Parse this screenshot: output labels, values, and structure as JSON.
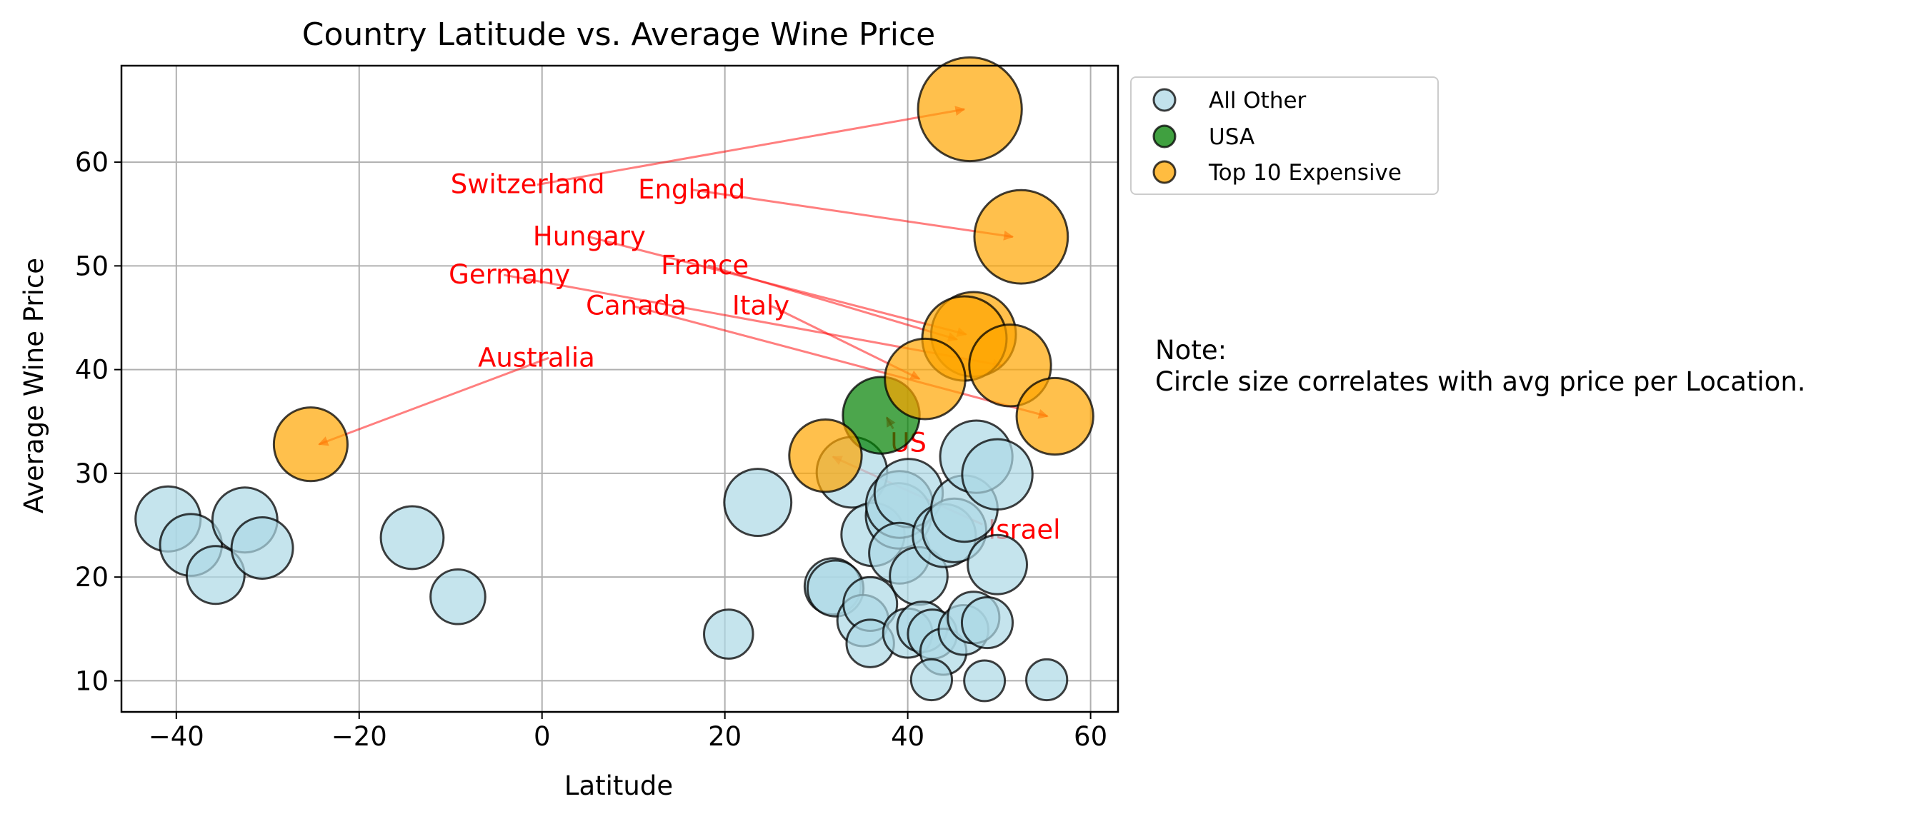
{
  "chart_data": {
    "type": "scatter",
    "title": "Country Latitude vs. Average Wine Price",
    "xlabel": "Latitude",
    "ylabel": "Average Wine Price",
    "xlim": [
      -46,
      63
    ],
    "ylim": [
      7,
      69.3
    ],
    "xticks": [
      -40,
      -20,
      0,
      20,
      40,
      60
    ],
    "yticks": [
      10,
      20,
      30,
      40,
      50,
      60
    ],
    "xtick_labels": [
      "−40",
      "−20",
      "0",
      "20",
      "40",
      "60"
    ],
    "ytick_labels": [
      "10",
      "20",
      "30",
      "40",
      "50",
      "60"
    ],
    "grid": true,
    "legend": {
      "placement": "outside upper-right",
      "entries": [
        {
          "label": "All Other",
          "color": "#add8e6"
        },
        {
          "label": "USA",
          "color": "#008000"
        },
        {
          "label": "Top 10 Expensive",
          "color": "#ffa500"
        }
      ]
    },
    "note": {
      "line1": "Note:",
      "line2": "Circle size correlates with avg price per Location."
    },
    "series": [
      {
        "name": "All Other",
        "color": "#add8e6",
        "points": [
          {
            "x": -40.9,
            "y": 25.6
          },
          {
            "x": -38.4,
            "y": 23.1
          },
          {
            "x": -35.7,
            "y": 20.2
          },
          {
            "x": -32.5,
            "y": 25.5
          },
          {
            "x": -30.6,
            "y": 22.8
          },
          {
            "x": -14.2,
            "y": 23.8
          },
          {
            "x": -9.2,
            "y": 18.1
          },
          {
            "x": 20.4,
            "y": 14.5
          },
          {
            "x": 23.6,
            "y": 27.2
          },
          {
            "x": 33.9,
            "y": 30.1
          },
          {
            "x": 31.8,
            "y": 19.1
          },
          {
            "x": 32.1,
            "y": 18.9
          },
          {
            "x": 35.1,
            "y": 15.8
          },
          {
            "x": 35.9,
            "y": 17.4
          },
          {
            "x": 35.9,
            "y": 13.6
          },
          {
            "x": 36.2,
            "y": 24.1
          },
          {
            "x": 39.0,
            "y": 25.9
          },
          {
            "x": 39.1,
            "y": 27.0
          },
          {
            "x": 40.1,
            "y": 28.1
          },
          {
            "x": 39.1,
            "y": 22.3
          },
          {
            "x": 41.2,
            "y": 20.1
          },
          {
            "x": 40.0,
            "y": 14.6
          },
          {
            "x": 41.6,
            "y": 15.2
          },
          {
            "x": 42.7,
            "y": 14.5
          },
          {
            "x": 43.9,
            "y": 12.8
          },
          {
            "x": 42.6,
            "y": 10.1
          },
          {
            "x": 44.0,
            "y": 24.0
          },
          {
            "x": 45.1,
            "y": 24.5
          },
          {
            "x": 46.2,
            "y": 26.6
          },
          {
            "x": 47.5,
            "y": 31.6
          },
          {
            "x": 49.8,
            "y": 29.9
          },
          {
            "x": 49.8,
            "y": 21.2
          },
          {
            "x": 46.1,
            "y": 14.9
          },
          {
            "x": 47.2,
            "y": 16.1
          },
          {
            "x": 48.7,
            "y": 15.6
          },
          {
            "x": 48.4,
            "y": 10.0
          },
          {
            "x": 55.2,
            "y": 10.1
          }
        ]
      },
      {
        "name": "USA",
        "color": "#008000",
        "points": [
          {
            "x": 37.1,
            "y": 35.6
          }
        ]
      },
      {
        "name": "Top 10 Expensive",
        "color": "#ffa500",
        "points": [
          {
            "x": 46.8,
            "y": 65.1,
            "label": "Switzerland"
          },
          {
            "x": 52.4,
            "y": 52.8,
            "label": "England"
          },
          {
            "x": 47.2,
            "y": 43.4,
            "label": "Hungary"
          },
          {
            "x": 46.2,
            "y": 43.0,
            "label": "France"
          },
          {
            "x": 51.2,
            "y": 40.4,
            "label": "Germany"
          },
          {
            "x": 41.9,
            "y": 39.1,
            "label": "Italy"
          },
          {
            "x": 56.1,
            "y": 35.5,
            "label": "Canada"
          },
          {
            "x": -25.3,
            "y": 32.8,
            "label": "Australia"
          },
          {
            "x": 31.0,
            "y": 31.7,
            "label": "Israel"
          }
        ]
      }
    ],
    "annotations": [
      {
        "text": "Switzerland",
        "text_x": -10,
        "text_y": 57,
        "target_x": 46.2,
        "target_y": 65.1
      },
      {
        "text": "England",
        "text_x": 10.5,
        "text_y": 56.5,
        "target_x": 51.5,
        "target_y": 52.8
      },
      {
        "text": "Hungary",
        "text_x": -1,
        "text_y": 52,
        "target_x": 46.4,
        "target_y": 43.4
      },
      {
        "text": "France",
        "text_x": 13,
        "text_y": 49.2,
        "target_x": 45.4,
        "target_y": 42.9
      },
      {
        "text": "Germany",
        "text_x": -10.2,
        "text_y": 48.3,
        "target_x": 50.3,
        "target_y": 40.4
      },
      {
        "text": "Canada",
        "text_x": 4.8,
        "text_y": 45.3,
        "target_x": 55.3,
        "target_y": 35.5
      },
      {
        "text": "Italy",
        "text_x": 20.8,
        "text_y": 45.3,
        "target_x": 41.3,
        "target_y": 39.1
      },
      {
        "text": "Australia",
        "text_x": -7,
        "text_y": 40.3,
        "target_x": -24.4,
        "target_y": 32.8
      },
      {
        "text": "US",
        "text_x": 38.1,
        "text_y": 32.1,
        "target_x": 37.7,
        "target_y": 35.4
      },
      {
        "text": "Israel",
        "text_x": 48.8,
        "text_y": 23.7,
        "target_x": 31.8,
        "target_y": 31.6
      }
    ]
  }
}
